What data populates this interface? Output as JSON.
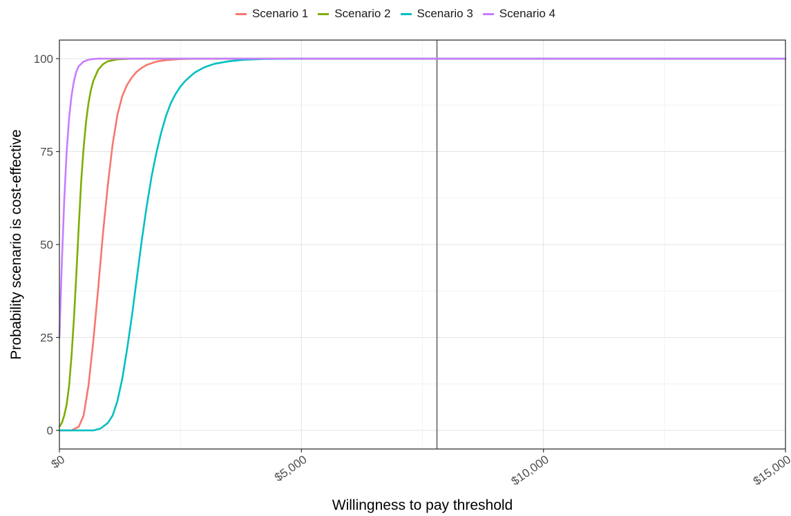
{
  "chart_data": {
    "type": "line",
    "title": "",
    "xlabel": "Willingness to pay threshold",
    "ylabel": "Probability scenario is cost-effective",
    "xlim": [
      0,
      15000
    ],
    "ylim": [
      -5,
      105
    ],
    "x_ticks": [
      0,
      5000,
      10000,
      15000
    ],
    "x_tick_labels": [
      "$0",
      "$5,000",
      "$10,000",
      "$15,000"
    ],
    "y_ticks": [
      0,
      25,
      50,
      75,
      100
    ],
    "y_tick_labels": [
      "0",
      "25",
      "50",
      "75",
      "100"
    ],
    "grid": true,
    "legend_position": "top",
    "vline": 7800,
    "series": [
      {
        "name": "Scenario 1",
        "color": "#F8766D",
        "x": [
          0,
          250,
          400,
          500,
          600,
          700,
          800,
          900,
          1000,
          1100,
          1200,
          1300,
          1400,
          1500,
          1600,
          1700,
          1800,
          2000,
          2200,
          2500,
          3000,
          4000,
          15000
        ],
        "y": [
          0,
          0,
          1,
          4,
          12,
          24,
          38,
          53,
          66,
          77,
          85,
          90,
          93,
          95,
          96.5,
          97.5,
          98.3,
          99.2,
          99.6,
          99.9,
          100,
          100,
          100
        ]
      },
      {
        "name": "Scenario 2",
        "color": "#7CAE00",
        "x": [
          0,
          50,
          100,
          150,
          200,
          250,
          300,
          350,
          400,
          450,
          500,
          550,
          600,
          650,
          700,
          800,
          900,
          1000,
          1200,
          1500,
          2000,
          15000
        ],
        "y": [
          1,
          2,
          4,
          7,
          12,
          20,
          30,
          42,
          55,
          67,
          76,
          83,
          88,
          91.5,
          94,
          97,
          98.5,
          99.3,
          99.8,
          100,
          100,
          100
        ]
      },
      {
        "name": "Scenario 3",
        "color": "#00BFC4",
        "x": [
          0,
          700,
          850,
          1000,
          1100,
          1200,
          1300,
          1400,
          1500,
          1600,
          1700,
          1800,
          1900,
          2000,
          2100,
          2200,
          2300,
          2400,
          2500,
          2600,
          2700,
          2800,
          3000,
          3200,
          3500,
          3800,
          4200,
          5000,
          15000
        ],
        "y": [
          0,
          0,
          0.5,
          2,
          4,
          8,
          14,
          22,
          31,
          41,
          51,
          60,
          68,
          74.5,
          80,
          84.5,
          88,
          90.5,
          92.5,
          94,
          95.2,
          96.3,
          97.7,
          98.6,
          99.3,
          99.7,
          99.9,
          100,
          100
        ]
      },
      {
        "name": "Scenario 4",
        "color": "#C77CFF",
        "x": [
          0,
          50,
          100,
          150,
          200,
          250,
          300,
          350,
          400,
          500,
          600,
          700,
          800,
          1000,
          1500,
          15000
        ],
        "y": [
          25,
          45,
          62,
          75,
          84,
          90,
          94,
          96.5,
          98,
          99.2,
          99.7,
          99.9,
          100,
          100,
          100,
          100
        ]
      }
    ]
  }
}
